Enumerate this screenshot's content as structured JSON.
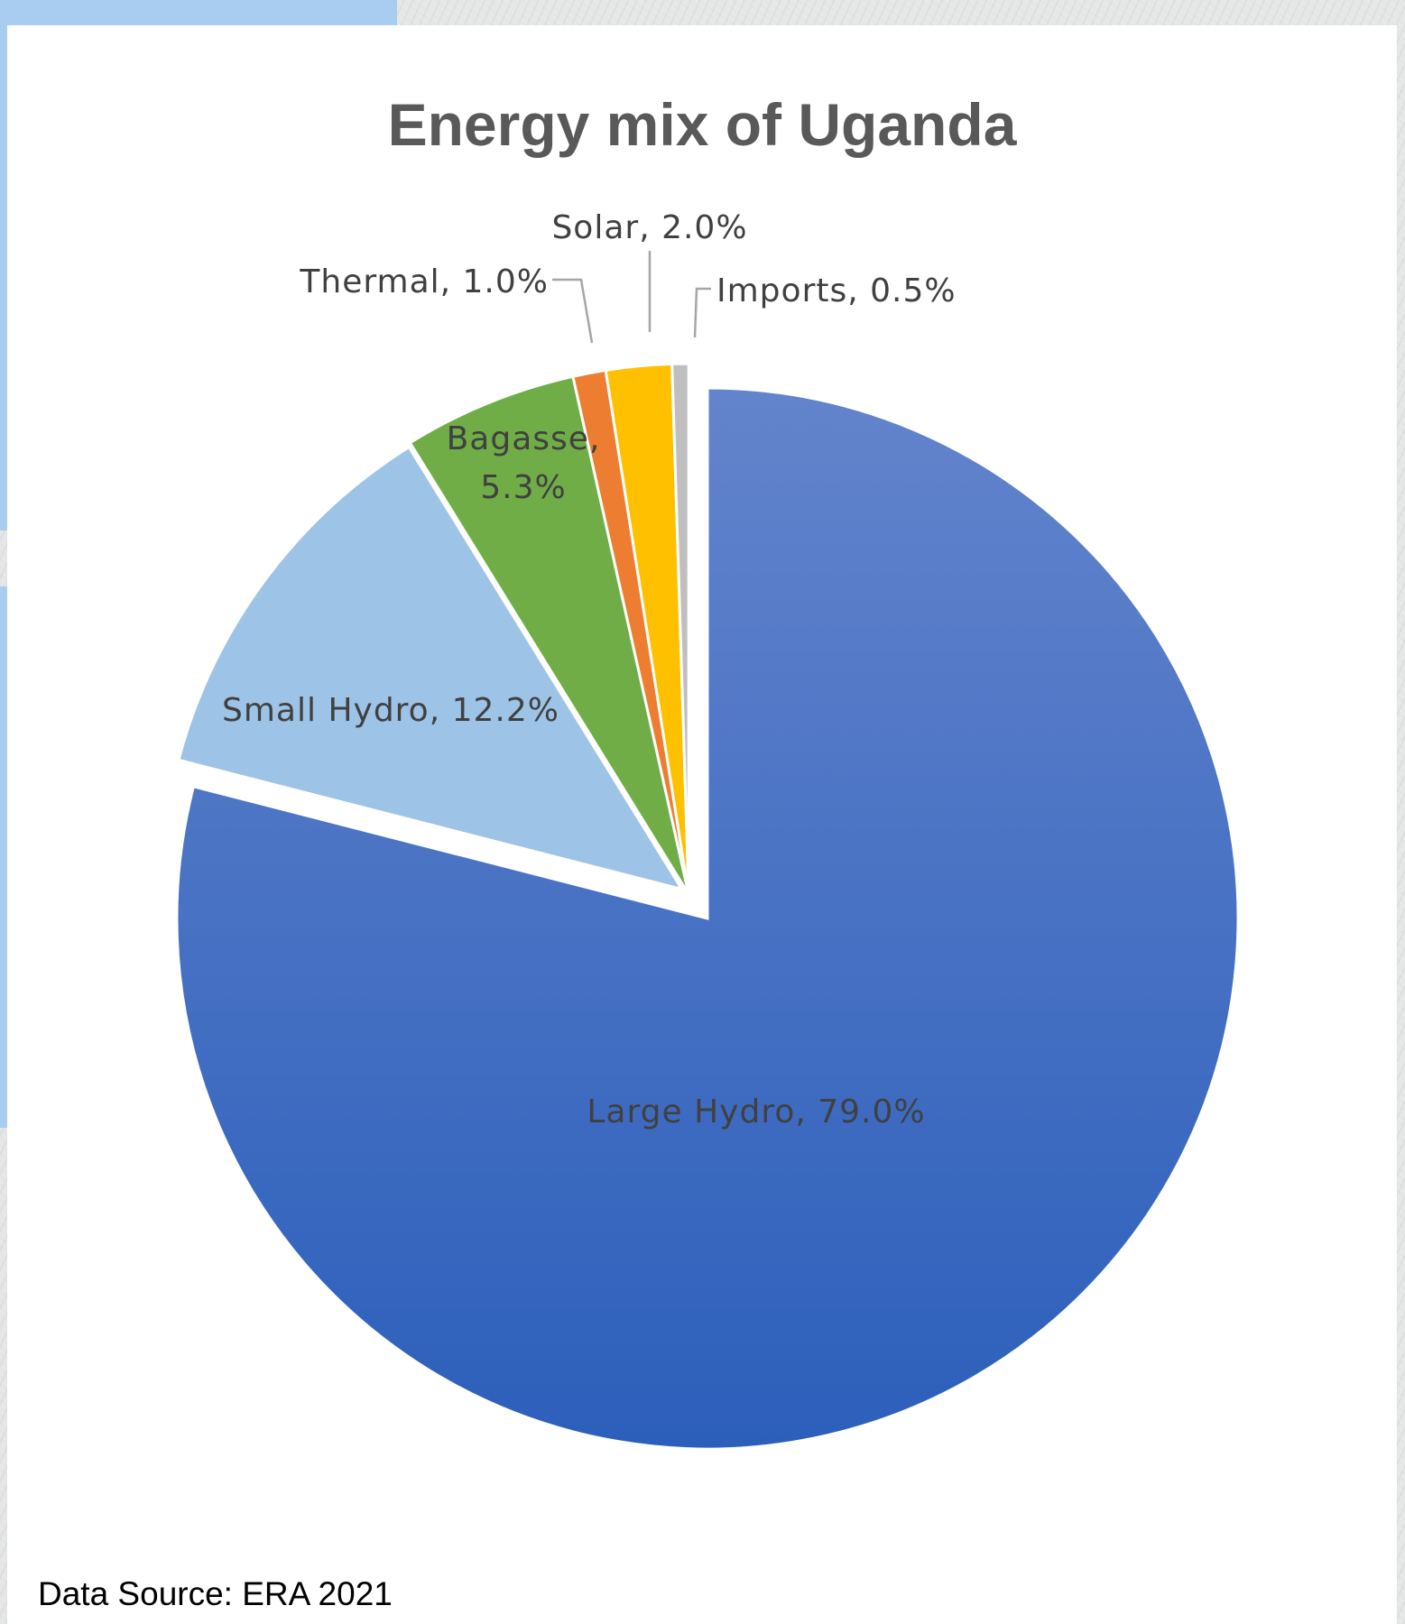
{
  "chart_data": {
    "type": "pie",
    "title": "Energy mix of Uganda",
    "slices": [
      {
        "name": "Large Hydro",
        "value": 79.0,
        "label": "Large Hydro, 79.0%",
        "color": "#4472c4",
        "exploded": false
      },
      {
        "name": "Small Hydro",
        "value": 12.2,
        "label": "Small Hydro, 12.2%",
        "color": "#9dc3e6",
        "exploded": true
      },
      {
        "name": "Bagasse",
        "value": 5.3,
        "label": "Bagasse,|5.3%",
        "color": "#70ad47",
        "exploded": true
      },
      {
        "name": "Thermal",
        "value": 1.0,
        "label": "Thermal, 1.0%",
        "color": "#ed7d31",
        "exploded": true
      },
      {
        "name": "Solar",
        "value": 2.0,
        "label": "Solar, 2.0%",
        "color": "#ffc000",
        "exploded": true
      },
      {
        "name": "Imports",
        "value": 0.5,
        "label": "Imports, 0.5%",
        "color": "#bfbfbf",
        "exploded": true
      }
    ],
    "units": "%",
    "legend": "none"
  },
  "footer": {
    "source": "Data Source: ERA 2021"
  }
}
